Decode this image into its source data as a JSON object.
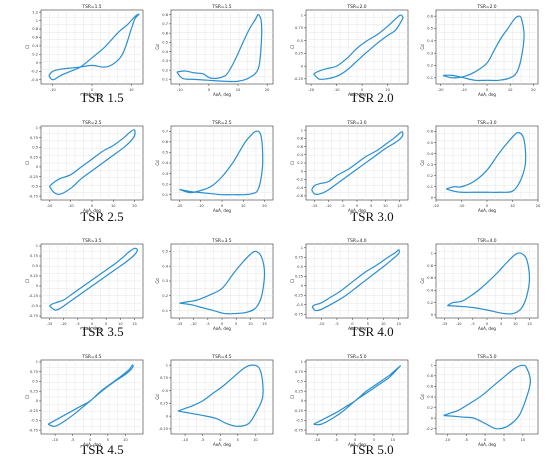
{
  "figure": {
    "line_color": "#2a8fd0",
    "grid": true,
    "panels": [
      {
        "caption": "TSR 1.5",
        "left": {
          "title": "TSR=1.5",
          "xlabel": "AoA, deg",
          "ylabel": "Cl",
          "xticks": [
            -10,
            0,
            10
          ],
          "yticks": [
            -0.4,
            -0.2,
            0.0,
            0.2,
            0.4,
            0.6,
            0.8,
            1.0,
            1.2
          ]
        },
        "right": {
          "title": "TSR=1.5",
          "xlabel": "AoA, deg",
          "ylabel": "Cd",
          "xticks": [
            -10,
            0,
            10,
            20
          ],
          "yticks": [
            0.1,
            0.2,
            0.3,
            0.4,
            0.5,
            0.6,
            0.7,
            0.8
          ]
        }
      },
      {
        "caption": "TSR 2.0",
        "left": {
          "title": "TSR=2.0",
          "xlabel": "AoA, deg",
          "ylabel": "Cl",
          "xticks": [
            -20,
            -10,
            0,
            10
          ],
          "yticks": [
            -0.25,
            0.0,
            0.25,
            0.5,
            0.75,
            1.0
          ]
        },
        "right": {
          "title": "TSR=2.0",
          "xlabel": "AoA, deg",
          "ylabel": "Cd",
          "xticks": [
            -20,
            -10,
            0,
            10,
            20
          ],
          "yticks": [
            0.1,
            0.2,
            0.3,
            0.4,
            0.5,
            0.6
          ]
        }
      },
      {
        "caption": "TSR 2.5",
        "left": {
          "title": "TSR=2.5",
          "xlabel": "AoA, deg",
          "ylabel": "Cl",
          "xticks": [
            -20,
            -10,
            0,
            10,
            20
          ],
          "yticks": [
            -0.75,
            -0.5,
            -0.25,
            0.0,
            0.25,
            0.5,
            0.75,
            1.0
          ]
        },
        "right": {
          "title": "TSR=2.5",
          "xlabel": "AoA, deg",
          "ylabel": "Cd",
          "xticks": [
            -20,
            -10,
            0,
            10,
            20
          ],
          "yticks": [
            0.1,
            0.2,
            0.3,
            0.4,
            0.5,
            0.6,
            0.7
          ]
        }
      },
      {
        "caption": "TSR 3.0",
        "left": {
          "title": "TSR=3.0",
          "xlabel": "AoA, deg",
          "ylabel": "Cl",
          "xticks": [
            -15,
            -10,
            -5,
            0,
            5,
            10,
            15
          ],
          "yticks": [
            -0.6,
            -0.4,
            -0.2,
            0.0,
            0.2,
            0.4,
            0.6,
            0.8,
            1.0
          ]
        },
        "right": {
          "title": "TSR=3.0",
          "xlabel": "AoA, deg",
          "ylabel": "Cd",
          "xticks": [
            -20,
            -10,
            0,
            10,
            20
          ],
          "yticks": [
            0.0,
            0.1,
            0.2,
            0.3,
            0.4,
            0.5,
            0.6
          ]
        }
      },
      {
        "caption": "TSR 3.5",
        "left": {
          "title": "TSR=3.5",
          "xlabel": "AoA, deg",
          "ylabel": "Cl",
          "xticks": [
            -15,
            -10,
            -5,
            0,
            5,
            10,
            15
          ],
          "yticks": [
            -0.75,
            -0.5,
            -0.25,
            0.0,
            0.25,
            0.5,
            0.75,
            1.0
          ]
        },
        "right": {
          "title": "TSR=3.5",
          "xlabel": "AoA, deg",
          "ylabel": "Cd",
          "xticks": [
            -15,
            -10,
            -5,
            0,
            5,
            10,
            15
          ],
          "yticks": [
            0.1,
            0.2,
            0.3,
            0.4,
            0.5
          ]
        }
      },
      {
        "caption": "TSR 4.0",
        "left": {
          "title": "TSR=4.0",
          "xlabel": "AoA, deg",
          "ylabel": "Cl",
          "xticks": [
            -10,
            -5,
            0,
            5,
            10,
            15
          ],
          "yticks": [
            -0.75,
            -0.5,
            -0.25,
            0.0,
            0.25,
            0.5,
            0.75,
            1.0
          ]
        },
        "right": {
          "title": "TSR=4.0",
          "xlabel": "AoA, deg",
          "ylabel": "Cd",
          "xticks": [
            -15,
            -10,
            -5,
            0,
            5,
            10,
            15
          ],
          "yticks": [
            0.0,
            0.2,
            0.4,
            0.6,
            0.8,
            1.0
          ]
        }
      },
      {
        "caption": "TSR 4.5",
        "left": {
          "title": "TSR=4.5",
          "xlabel": "AoA, deg",
          "ylabel": "Cl",
          "xticks": [
            -10,
            -5,
            0,
            5,
            10
          ],
          "yticks": [
            -0.75,
            -0.5,
            -0.25,
            0.0,
            0.25,
            0.5,
            0.75,
            1.0
          ]
        },
        "right": {
          "title": "TSR=4.5",
          "xlabel": "AoA, deg",
          "ylabel": "Cd",
          "xticks": [
            -10,
            -5,
            0,
            5,
            10
          ],
          "yticks": [
            -0.25,
            0.0,
            0.25,
            0.5,
            0.75,
            1.0
          ]
        }
      },
      {
        "caption": "TSR 5.0",
        "left": {
          "title": "TSR=5.0",
          "xlabel": "AoA, deg",
          "ylabel": "Cl",
          "xticks": [
            -10,
            -5,
            0,
            5,
            10
          ],
          "yticks": [
            -0.75,
            -0.5,
            -0.25,
            0.0,
            0.25,
            0.5,
            0.75,
            1.0
          ]
        },
        "right": {
          "title": "TSR=5.0",
          "xlabel": "AoA, deg",
          "ylabel": "Cd",
          "xticks": [
            -10,
            -5,
            0,
            5,
            10
          ],
          "yticks": [
            -0.2,
            0.0,
            0.2,
            0.4,
            0.6,
            0.8,
            1.0
          ]
        }
      }
    ]
  },
  "chart_data": [
    {
      "type": "line",
      "title": "TSR=1.5",
      "xlabel": "AoA, deg",
      "ylabel": "Cl",
      "xlim": [
        -13,
        13
      ],
      "ylim": [
        -0.5,
        1.25
      ],
      "x": [
        -11,
        -10,
        -8,
        -5,
        -3,
        0,
        3,
        5,
        7,
        8,
        9,
        10,
        11,
        12,
        11,
        9,
        7,
        5,
        3,
        0,
        -3,
        -6,
        -8,
        -10,
        -11
      ],
      "y": [
        -0.3,
        -0.2,
        -0.15,
        -0.12,
        -0.1,
        -0.06,
        -0.1,
        -0.05,
        0.1,
        0.25,
        0.5,
        0.8,
        1.05,
        1.15,
        1.1,
        0.9,
        0.75,
        0.55,
        0.35,
        0.12,
        -0.1,
        -0.22,
        -0.3,
        -0.4,
        -0.3
      ]
    },
    {
      "type": "line",
      "title": "TSR=1.5",
      "xlabel": "AoA, deg",
      "ylabel": "Cd",
      "xlim": [
        -13,
        22
      ],
      "ylim": [
        0.05,
        0.85
      ],
      "x": [
        -11,
        -8,
        -5,
        -2,
        0,
        2,
        4,
        6,
        8,
        10,
        12,
        14,
        16,
        17,
        18,
        18,
        17,
        14,
        10,
        5,
        0,
        -5,
        -9,
        -11
      ],
      "y": [
        0.18,
        0.19,
        0.17,
        0.16,
        0.12,
        0.11,
        0.12,
        0.15,
        0.25,
        0.38,
        0.52,
        0.65,
        0.75,
        0.8,
        0.72,
        0.5,
        0.22,
        0.12,
        0.08,
        0.08,
        0.09,
        0.1,
        0.11,
        0.18
      ]
    },
    {
      "type": "line",
      "title": "TSR=2.0",
      "xlabel": "AoA, deg",
      "ylabel": "Cl",
      "xlim": [
        -22,
        18
      ],
      "ylim": [
        -0.35,
        1.1
      ],
      "x": [
        -19,
        -17,
        -14,
        -10,
        -6,
        -2,
        2,
        6,
        10,
        13,
        15,
        16,
        15,
        13,
        10,
        6,
        2,
        -2,
        -6,
        -10,
        -14,
        -17,
        -19
      ],
      "y": [
        -0.15,
        -0.1,
        -0.05,
        0.0,
        0.15,
        0.35,
        0.5,
        0.62,
        0.78,
        0.92,
        1.0,
        0.95,
        0.85,
        0.7,
        0.6,
        0.45,
        0.28,
        0.1,
        -0.08,
        -0.2,
        -0.25,
        -0.25,
        -0.15
      ]
    },
    {
      "type": "line",
      "title": "TSR=2.0",
      "xlabel": "AoA, deg",
      "ylabel": "Cd",
      "xlim": [
        -22,
        22
      ],
      "ylim": [
        0.05,
        0.65
      ],
      "x": [
        -19,
        -15,
        -10,
        -5,
        0,
        3,
        6,
        9,
        12,
        14,
        15,
        16,
        15,
        13,
        10,
        5,
        0,
        -5,
        -10,
        -15,
        -19
      ],
      "y": [
        0.12,
        0.1,
        0.11,
        0.15,
        0.22,
        0.32,
        0.42,
        0.5,
        0.58,
        0.6,
        0.57,
        0.45,
        0.28,
        0.15,
        0.1,
        0.08,
        0.08,
        0.08,
        0.1,
        0.12,
        0.12
      ]
    },
    {
      "type": "line",
      "title": "TSR=2.5",
      "xlabel": "AoA, deg",
      "ylabel": "Cl",
      "xlim": [
        -24,
        24
      ],
      "ylim": [
        -0.85,
        1.05
      ],
      "x": [
        -20,
        -18,
        -15,
        -10,
        -5,
        0,
        5,
        10,
        15,
        18,
        20,
        20,
        18,
        15,
        10,
        5,
        0,
        -5,
        -10,
        -15,
        -18,
        -20
      ],
      "y": [
        -0.5,
        -0.4,
        -0.3,
        -0.2,
        0.0,
        0.2,
        0.4,
        0.55,
        0.75,
        0.9,
        0.95,
        0.8,
        0.65,
        0.5,
        0.3,
        0.1,
        -0.1,
        -0.3,
        -0.55,
        -0.7,
        -0.65,
        -0.5
      ]
    },
    {
      "type": "line",
      "title": "TSR=2.5",
      "xlabel": "AoA, deg",
      "ylabel": "Cd",
      "xlim": [
        -24,
        24
      ],
      "ylim": [
        0.05,
        0.75
      ],
      "x": [
        -20,
        -15,
        -10,
        -5,
        0,
        5,
        8,
        11,
        14,
        16,
        18,
        19,
        19,
        17,
        14,
        10,
        5,
        0,
        -5,
        -10,
        -15,
        -20
      ],
      "y": [
        0.15,
        0.12,
        0.14,
        0.18,
        0.27,
        0.4,
        0.5,
        0.6,
        0.67,
        0.7,
        0.68,
        0.55,
        0.35,
        0.15,
        0.11,
        0.1,
        0.1,
        0.1,
        0.11,
        0.12,
        0.13,
        0.15
      ]
    },
    {
      "type": "line",
      "title": "TSR=3.0",
      "xlabel": "AoA, deg",
      "ylabel": "Cl",
      "xlim": [
        -18,
        18
      ],
      "ylim": [
        -0.7,
        1.1
      ],
      "x": [
        -16,
        -15,
        -13,
        -10,
        -7,
        -3,
        0,
        3,
        7,
        10,
        13,
        15,
        16,
        16,
        14,
        10,
        6,
        2,
        -2,
        -6,
        -10,
        -13,
        -15,
        -16
      ],
      "y": [
        -0.45,
        -0.35,
        -0.3,
        -0.25,
        -0.1,
        0.05,
        0.2,
        0.35,
        0.5,
        0.65,
        0.8,
        0.92,
        0.96,
        0.85,
        0.72,
        0.55,
        0.35,
        0.15,
        -0.05,
        -0.25,
        -0.45,
        -0.55,
        -0.55,
        -0.45
      ]
    },
    {
      "type": "line",
      "title": "TSR=3.0",
      "xlabel": "AoA, deg",
      "ylabel": "Cd",
      "xlim": [
        -20,
        20
      ],
      "ylim": [
        -0.02,
        0.65
      ],
      "x": [
        -16,
        -13,
        -10,
        -5,
        0,
        4,
        7,
        10,
        12,
        14,
        15,
        15,
        13,
        10,
        5,
        0,
        -5,
        -10,
        -13,
        -16
      ],
      "y": [
        0.08,
        0.1,
        0.1,
        0.15,
        0.25,
        0.38,
        0.47,
        0.55,
        0.59,
        0.56,
        0.45,
        0.3,
        0.15,
        0.06,
        0.05,
        0.05,
        0.05,
        0.05,
        0.06,
        0.08
      ]
    },
    {
      "type": "line",
      "title": "TSR=3.5",
      "xlabel": "AoA, deg",
      "ylabel": "Cl",
      "xlim": [
        -18,
        18
      ],
      "ylim": [
        -0.8,
        1.05
      ],
      "x": [
        -15,
        -14,
        -12,
        -10,
        -7,
        -4,
        0,
        4,
        8,
        11,
        13,
        15,
        16,
        15,
        12,
        8,
        4,
        0,
        -4,
        -8,
        -11,
        -13,
        -15
      ],
      "y": [
        -0.5,
        -0.45,
        -0.4,
        -0.35,
        -0.2,
        -0.05,
        0.15,
        0.35,
        0.55,
        0.72,
        0.85,
        0.94,
        0.9,
        0.78,
        0.6,
        0.4,
        0.2,
        0.0,
        -0.2,
        -0.4,
        -0.55,
        -0.6,
        -0.5
      ]
    },
    {
      "type": "line",
      "title": "TSR=3.5",
      "xlabel": "AoA, deg",
      "ylabel": "Cd",
      "xlim": [
        -18,
        18
      ],
      "ylim": [
        0.05,
        0.55
      ],
      "x": [
        -15,
        -12,
        -9,
        -5,
        0,
        4,
        7,
        10,
        12,
        14,
        15,
        14,
        12,
        9,
        5,
        1,
        -3,
        -7,
        -11,
        -15
      ],
      "y": [
        0.15,
        0.16,
        0.17,
        0.2,
        0.25,
        0.35,
        0.42,
        0.48,
        0.5,
        0.46,
        0.35,
        0.2,
        0.12,
        0.09,
        0.08,
        0.08,
        0.1,
        0.12,
        0.14,
        0.15
      ]
    },
    {
      "type": "line",
      "title": "TSR=4.0",
      "xlabel": "AoA, deg",
      "ylabel": "Cl",
      "xlim": [
        -15,
        18
      ],
      "ylim": [
        -0.85,
        1.1
      ],
      "x": [
        -13,
        -12,
        -10,
        -7,
        -4,
        0,
        4,
        8,
        11,
        14,
        15,
        15,
        13,
        10,
        6,
        2,
        -2,
        -6,
        -10,
        -12,
        -13
      ],
      "y": [
        -0.55,
        -0.5,
        -0.45,
        -0.3,
        -0.15,
        0.1,
        0.35,
        0.55,
        0.72,
        0.88,
        0.95,
        0.85,
        0.7,
        0.5,
        0.25,
        0.0,
        -0.25,
        -0.45,
        -0.62,
        -0.65,
        -0.55
      ]
    },
    {
      "type": "line",
      "title": "TSR=4.0",
      "xlabel": "AoA, deg",
      "ylabel": "Cd",
      "xlim": [
        -18,
        18
      ],
      "ylim": [
        -0.05,
        1.15
      ],
      "x": [
        -14,
        -12,
        -9,
        -6,
        -3,
        0,
        4,
        7,
        10,
        12,
        14,
        15,
        14,
        12,
        9,
        5,
        0,
        -5,
        -10,
        -14
      ],
      "y": [
        0.15,
        0.2,
        0.22,
        0.3,
        0.4,
        0.52,
        0.7,
        0.85,
        0.98,
        1.0,
        0.9,
        0.6,
        0.3,
        0.1,
        0.02,
        0.03,
        0.08,
        0.12,
        0.14,
        0.15
      ]
    },
    {
      "type": "line",
      "title": "TSR=4.5",
      "xlabel": "AoA, deg",
      "ylabel": "Cl",
      "xlim": [
        -14,
        15
      ],
      "ylim": [
        -0.85,
        1.05
      ],
      "x": [
        -12,
        -11,
        -9,
        -6,
        -3,
        0,
        3,
        6,
        9,
        11,
        12,
        12,
        10,
        7,
        4,
        0,
        -4,
        -7,
        -10,
        -12
      ],
      "y": [
        -0.6,
        -0.55,
        -0.45,
        -0.3,
        -0.15,
        0.0,
        0.25,
        0.45,
        0.65,
        0.8,
        0.92,
        0.85,
        0.68,
        0.5,
        0.3,
        0.0,
        -0.3,
        -0.5,
        -0.65,
        -0.6
      ]
    },
    {
      "type": "line",
      "title": "TSR=4.5",
      "xlabel": "AoA, deg",
      "ylabel": "Cd",
      "xlim": [
        -14,
        15
      ],
      "ylim": [
        -0.35,
        1.1
      ],
      "x": [
        -12,
        -10,
        -8,
        -5,
        -2,
        1,
        4,
        7,
        9,
        11,
        12,
        12,
        10,
        8,
        5,
        2,
        -1,
        -4,
        -8,
        -12
      ],
      "y": [
        0.1,
        0.15,
        0.2,
        0.3,
        0.45,
        0.6,
        0.78,
        0.95,
        1.0,
        0.95,
        0.7,
        0.35,
        0.05,
        -0.15,
        -0.2,
        -0.15,
        -0.05,
        0.0,
        0.05,
        0.1
      ]
    },
    {
      "type": "line",
      "title": "TSR=5.0",
      "xlabel": "AoA, deg",
      "ylabel": "Cl",
      "xlim": [
        -13,
        14
      ],
      "ylim": [
        -0.85,
        1.05
      ],
      "x": [
        -11,
        -10,
        -8,
        -5,
        -2,
        0,
        3,
        6,
        9,
        11,
        12,
        11,
        9,
        6,
        3,
        0,
        -3,
        -6,
        -9,
        -11
      ],
      "y": [
        -0.6,
        -0.55,
        -0.45,
        -0.3,
        -0.12,
        0.0,
        0.25,
        0.45,
        0.65,
        0.82,
        0.9,
        0.8,
        0.6,
        0.4,
        0.2,
        0.0,
        -0.25,
        -0.45,
        -0.6,
        -0.6
      ]
    },
    {
      "type": "line",
      "title": "TSR=5.0",
      "xlabel": "AoA, deg",
      "ylabel": "Cd",
      "xlim": [
        -13,
        14
      ],
      "ylim": [
        -0.3,
        1.1
      ],
      "x": [
        -11,
        -9,
        -7,
        -4,
        -1,
        2,
        5,
        8,
        10,
        11,
        12,
        11,
        9,
        6,
        3,
        0,
        -3,
        -6,
        -9,
        -11
      ],
      "y": [
        0.05,
        0.1,
        0.15,
        0.28,
        0.42,
        0.6,
        0.78,
        0.95,
        1.0,
        0.95,
        0.7,
        0.4,
        0.05,
        -0.15,
        -0.2,
        -0.1,
        0.0,
        0.02,
        0.04,
        0.05
      ]
    }
  ]
}
